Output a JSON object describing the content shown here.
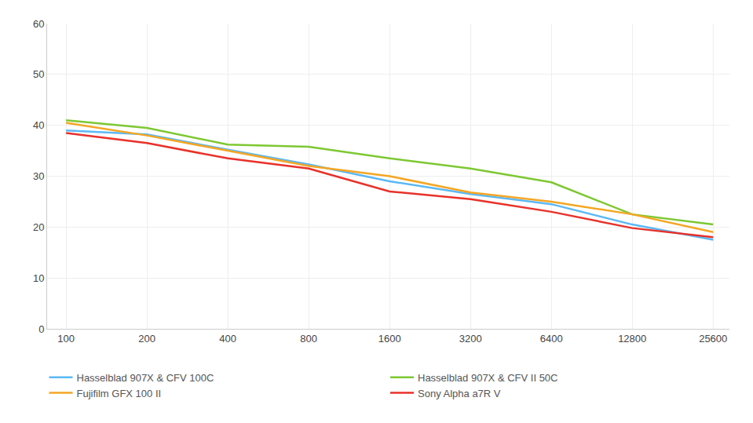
{
  "chart_data": {
    "type": "line",
    "x": [
      100,
      200,
      400,
      800,
      1600,
      3200,
      6400,
      12800,
      25600
    ],
    "series": [
      {
        "name": "Hasselblad 907X & CFV 100C",
        "color": "#5bb8f5",
        "values": [
          39.0,
          38.2,
          35.2,
          32.3,
          29.0,
          26.5,
          24.5,
          20.5,
          17.5
        ]
      },
      {
        "name": "Hasselblad 907X & CFV II 50C",
        "color": "#7dc832",
        "values": [
          41.0,
          39.5,
          36.2,
          35.8,
          33.5,
          31.5,
          28.8,
          22.5,
          20.5
        ]
      },
      {
        "name": "Fujifilm GFX 100 II",
        "color": "#f5a623",
        "values": [
          40.5,
          38.0,
          35.0,
          32.0,
          30.0,
          26.8,
          25.0,
          22.5,
          19.0
        ]
      },
      {
        "name": "Sony Alpha a7R V",
        "color": "#e8312a",
        "values": [
          38.5,
          36.5,
          33.5,
          31.5,
          27.0,
          25.5,
          23.0,
          19.8,
          18.0
        ]
      }
    ],
    "xlim": [
      85,
      29440
    ],
    "xticks": [
      100,
      200,
      400,
      800,
      1600,
      3200,
      6400,
      12800,
      25600
    ],
    "ylim": [
      0,
      60
    ],
    "yticks": [
      0,
      10,
      20,
      30,
      40,
      50,
      60
    ],
    "log": "x",
    "grid": true,
    "legend": "bottom"
  }
}
